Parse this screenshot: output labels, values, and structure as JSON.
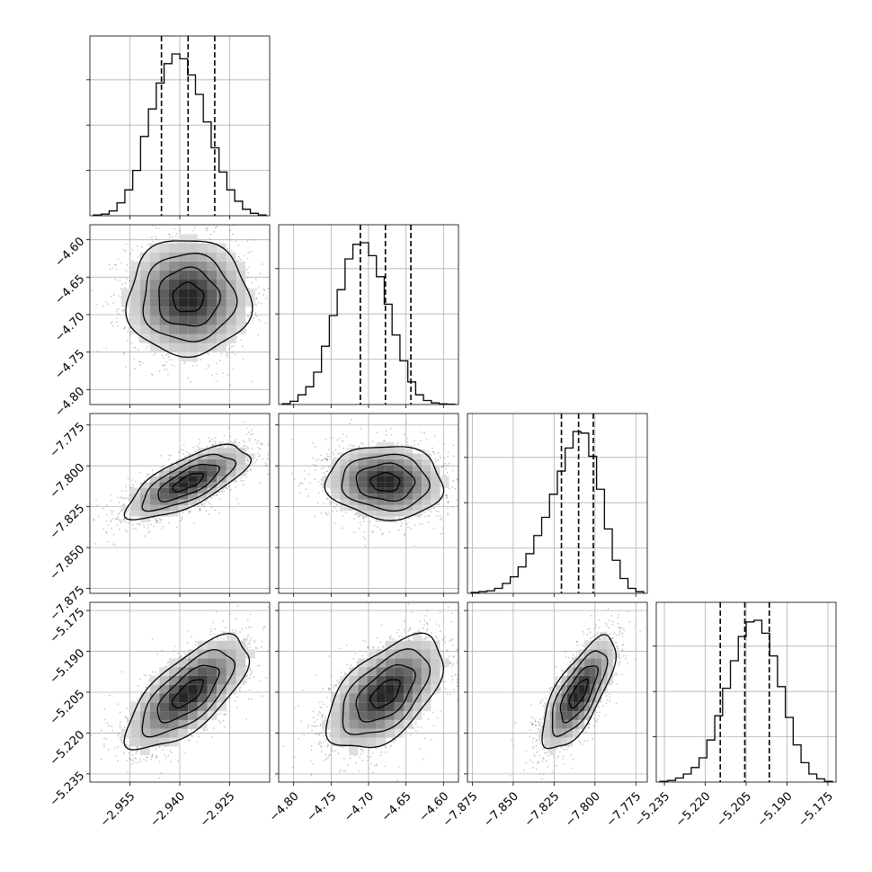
{
  "chart_data": {
    "type": "corner",
    "parameters": [
      {
        "range": [
          -2.967,
          -2.913
        ],
        "quantiles": [
          -2.9455,
          -2.9375,
          -2.9295
        ],
        "xticks": [
          -2.955,
          -2.94,
          -2.925
        ],
        "xtick_labels": [
          "−2.955",
          "−2.940",
          "−2.925"
        ],
        "hist": [
          0.005,
          0.01,
          0.03,
          0.08,
          0.16,
          0.28,
          0.49,
          0.66,
          0.82,
          0.94,
          1.0,
          0.97,
          0.87,
          0.75,
          0.58,
          0.42,
          0.27,
          0.16,
          0.09,
          0.04,
          0.015,
          0.005
        ]
      },
      {
        "range": [
          -4.82,
          -4.58
        ],
        "quantiles": [
          -4.711,
          -4.6775,
          -4.6435
        ],
        "ticks": [
          -4.8,
          -4.75,
          -4.7,
          -4.65,
          -4.6
        ],
        "tick_labels": [
          "−4.80",
          "−4.75",
          "−4.70",
          "−4.65",
          "−4.60"
        ],
        "hist": [
          0.005,
          0.02,
          0.06,
          0.11,
          0.2,
          0.36,
          0.55,
          0.71,
          0.9,
          0.99,
          1.0,
          0.92,
          0.79,
          0.62,
          0.43,
          0.27,
          0.14,
          0.06,
          0.025,
          0.01,
          0.004,
          0.002
        ]
      },
      {
        "range": [
          -7.878,
          -7.768
        ],
        "quantiles": [
          -7.8205,
          -7.81,
          -7.801
        ],
        "ticks": [
          -7.875,
          -7.85,
          -7.825,
          -7.8,
          -7.775
        ],
        "tick_labels": [
          "−7.875",
          "−7.850",
          "−7.825",
          "−7.800",
          "−7.775"
        ],
        "hist": [
          0.005,
          0.01,
          0.015,
          0.03,
          0.06,
          0.1,
          0.16,
          0.24,
          0.35,
          0.46,
          0.6,
          0.74,
          0.88,
          0.98,
          0.97,
          0.83,
          0.63,
          0.39,
          0.2,
          0.09,
          0.03,
          0.01
        ]
      },
      {
        "range": [
          -5.238,
          -5.172
        ],
        "quantiles": [
          -5.2145,
          -5.2055,
          -5.1965
        ],
        "ticks": [
          -5.235,
          -5.22,
          -5.205,
          -5.19,
          -5.175
        ],
        "tick_labels": [
          "−5.235",
          "−5.220",
          "−5.205",
          "−5.190",
          "−5.175"
        ],
        "hist": [
          0.005,
          0.01,
          0.025,
          0.05,
          0.09,
          0.15,
          0.26,
          0.41,
          0.58,
          0.75,
          0.9,
          0.99,
          1.0,
          0.92,
          0.78,
          0.59,
          0.4,
          0.23,
          0.12,
          0.05,
          0.02,
          0.005
        ]
      }
    ],
    "correlations": {
      "1-0": 0.0,
      "2-0": 0.72,
      "2-1": -0.05,
      "3-0": 0.7,
      "3-1": 0.55,
      "3-2": 0.72
    },
    "grid": true,
    "line_color": "#000000",
    "density_color": "#000000"
  }
}
